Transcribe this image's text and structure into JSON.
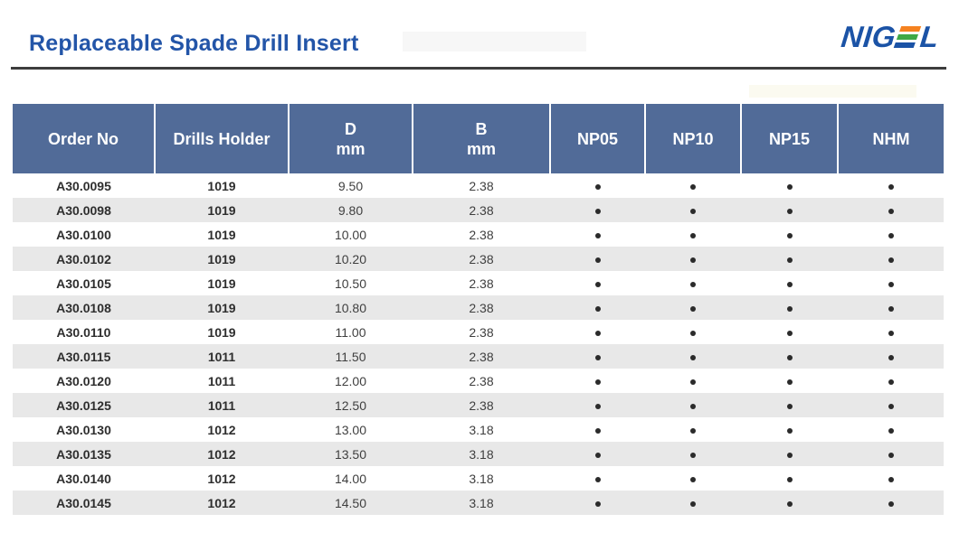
{
  "header": {
    "title": "Replaceable Spade Drill Insert",
    "logo": {
      "left": "NIG",
      "right": "L",
      "e_bars": [
        "#F58220",
        "#3FA845",
        "#1B53A6"
      ]
    }
  },
  "colors": {
    "title": "#2355A8",
    "logo_blue": "#1B53A6",
    "divider": "#3D3D3D",
    "table_header_bg": "#516B98",
    "table_header_text": "#FFFFFF",
    "row_stripe": "#E8E8E8",
    "dot": "#2B2B2B"
  },
  "table": {
    "columns": [
      {
        "key": "order_no",
        "label": "Order No"
      },
      {
        "key": "holder",
        "label": "Drills Holder"
      },
      {
        "key": "d",
        "label": "D",
        "sub": "mm"
      },
      {
        "key": "b",
        "label": "B",
        "sub": "mm"
      },
      {
        "key": "np05",
        "label": "NP05"
      },
      {
        "key": "np10",
        "label": "NP10"
      },
      {
        "key": "np15",
        "label": "NP15"
      },
      {
        "key": "nhm",
        "label": "NHM"
      }
    ],
    "bold_columns": [
      "order_no",
      "holder"
    ],
    "grade_columns": [
      "np05",
      "np10",
      "np15",
      "nhm"
    ],
    "rows": [
      {
        "order_no": "A30.0095",
        "holder": "1019",
        "d": "9.50",
        "b": "2.38",
        "np05": true,
        "np10": true,
        "np15": true,
        "nhm": true
      },
      {
        "order_no": "A30.0098",
        "holder": "1019",
        "d": "9.80",
        "b": "2.38",
        "np05": true,
        "np10": true,
        "np15": true,
        "nhm": true
      },
      {
        "order_no": "A30.0100",
        "holder": "1019",
        "d": "10.00",
        "b": "2.38",
        "np05": true,
        "np10": true,
        "np15": true,
        "nhm": true
      },
      {
        "order_no": "A30.0102",
        "holder": "1019",
        "d": "10.20",
        "b": "2.38",
        "np05": true,
        "np10": true,
        "np15": true,
        "nhm": true
      },
      {
        "order_no": "A30.0105",
        "holder": "1019",
        "d": "10.50",
        "b": "2.38",
        "np05": true,
        "np10": true,
        "np15": true,
        "nhm": true
      },
      {
        "order_no": "A30.0108",
        "holder": "1019",
        "d": "10.80",
        "b": "2.38",
        "np05": true,
        "np10": true,
        "np15": true,
        "nhm": true
      },
      {
        "order_no": "A30.0110",
        "holder": "1019",
        "d": "11.00",
        "b": "2.38",
        "np05": true,
        "np10": true,
        "np15": true,
        "nhm": true
      },
      {
        "order_no": "A30.0115",
        "holder": "1011",
        "d": "11.50",
        "b": "2.38",
        "np05": true,
        "np10": true,
        "np15": true,
        "nhm": true
      },
      {
        "order_no": "A30.0120",
        "holder": "1011",
        "d": "12.00",
        "b": "2.38",
        "np05": true,
        "np10": true,
        "np15": true,
        "nhm": true
      },
      {
        "order_no": "A30.0125",
        "holder": "1011",
        "d": "12.50",
        "b": "2.38",
        "np05": true,
        "np10": true,
        "np15": true,
        "nhm": true
      },
      {
        "order_no": "A30.0130",
        "holder": "1012",
        "d": "13.00",
        "b": "3.18",
        "np05": true,
        "np10": true,
        "np15": true,
        "nhm": true
      },
      {
        "order_no": "A30.0135",
        "holder": "1012",
        "d": "13.50",
        "b": "3.18",
        "np05": true,
        "np10": true,
        "np15": true,
        "nhm": true
      },
      {
        "order_no": "A30.0140",
        "holder": "1012",
        "d": "14.00",
        "b": "3.18",
        "np05": true,
        "np10": true,
        "np15": true,
        "nhm": true
      },
      {
        "order_no": "A30.0145",
        "holder": "1012",
        "d": "14.50",
        "b": "3.18",
        "np05": true,
        "np10": true,
        "np15": true,
        "nhm": true
      }
    ]
  }
}
